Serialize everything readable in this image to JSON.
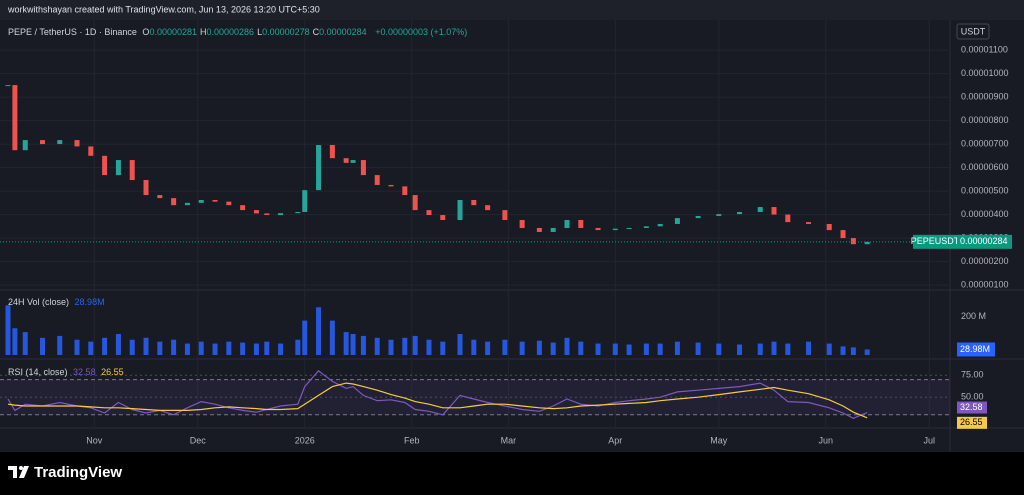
{
  "header": {
    "credit": "workwithshayan created with TradingView.com, Jun 13, 2026 13:20 UTC+5:30"
  },
  "chart_data": [
    {
      "type": "candlestick",
      "title": "PEPE / TetherUS · 1D · Binance",
      "ohlc_legend": [
        {
          "label": "O",
          "value": "0.00000281"
        },
        {
          "label": "H",
          "value": "0.00000286"
        },
        {
          "label": "L",
          "value": "0.00000278"
        },
        {
          "label": "C",
          "value": "0.00000284"
        }
      ],
      "change": "+0.00000003 (+1.07%)",
      "currency": "USDT",
      "symbol_tag": "PEPEUSDT",
      "last_price": {
        "value": 2.84e-06,
        "label": "0.00000284"
      },
      "up_color": "#26a69a",
      "down_color": "#ef5350",
      "x": [
        0,
        2,
        5,
        10,
        15,
        20,
        24,
        28,
        32,
        36,
        40,
        44,
        48,
        52,
        56,
        60,
        64,
        68,
        72,
        75,
        79,
        84,
        86,
        90,
        94,
        98,
        100,
        103,
        107,
        111,
        115,
        118,
        122,
        126,
        131,
        135,
        139,
        144,
        149,
        154,
        158,
        162,
        166,
        171,
        176,
        180,
        185,
        189,
        194,
        200,
        206,
        212,
        218,
        222,
        226,
        232,
        238,
        242,
        245,
        249
      ],
      "close": [
        9.51e-06,
        6.74e-06,
        7.17e-06,
        7e-06,
        7.17e-06,
        6.9e-06,
        6.5e-06,
        5.68e-06,
        6.32e-06,
        5.47e-06,
        4.83e-06,
        4.7e-06,
        4.4e-06,
        4.5e-06,
        4.62e-06,
        4.55e-06,
        4.4e-06,
        4.19e-06,
        4.05e-06,
        3.98e-06,
        4.06e-06,
        4.11e-06,
        5.04e-06,
        6.96e-06,
        6.4e-06,
        6.2e-06,
        6.32e-06,
        5.68e-06,
        5.26e-06,
        5.2e-06,
        4.83e-06,
        4.19e-06,
        3.98e-06,
        3.77e-06,
        4.62e-06,
        4.4e-06,
        4.19e-06,
        3.77e-06,
        3.43e-06,
        3.26e-06,
        3.43e-06,
        3.77e-06,
        3.43e-06,
        3.34e-06,
        3.4e-06,
        3.43e-06,
        3.5e-06,
        3.6e-06,
        3.85e-06,
        3.94e-06,
        4.02e-06,
        4.11e-06,
        4.32e-06,
        4e-06,
        3.68e-06,
        3.6e-06,
        3.34e-06,
        3e-06,
        2.74e-06,
        2.84e-06
      ],
      "xlim": [
        0,
        273
      ],
      "xticks": [
        {
          "value": 25,
          "label": "Nov"
        },
        {
          "value": 55,
          "label": "Dec"
        },
        {
          "value": 86,
          "label": "2026"
        },
        {
          "value": 117,
          "label": "Feb"
        },
        {
          "value": 145,
          "label": "Mar"
        },
        {
          "value": 176,
          "label": "Apr"
        },
        {
          "value": 206,
          "label": "May"
        },
        {
          "value": 237,
          "label": "Jun"
        },
        {
          "value": 267,
          "label": "Jul"
        }
      ],
      "ylim": [
        7.9e-07,
        1.228e-05
      ],
      "yticks": [
        {
          "value": 1e-06,
          "label": "0.00000100"
        },
        {
          "value": 2e-06,
          "label": "0.00000200"
        },
        {
          "value": 3e-06,
          "label": "0.00000300"
        },
        {
          "value": 4e-06,
          "label": "0.00000400"
        },
        {
          "value": 5e-06,
          "label": "0.00000500"
        },
        {
          "value": 6e-06,
          "label": "0.00000600"
        },
        {
          "value": 7e-06,
          "label": "0.00000700"
        },
        {
          "value": 8e-06,
          "label": "0.00000800"
        },
        {
          "value": 9e-06,
          "label": "0.00000900"
        },
        {
          "value": 1e-05,
          "label": "0.00001000"
        },
        {
          "value": 1.1e-05,
          "label": "0.00001100"
        }
      ],
      "grid": true
    },
    {
      "type": "bar",
      "title": "24H Vol (close)",
      "last_value_label": "28.98M",
      "series": [
        {
          "color": "#2962ff",
          "values": [
            260,
            140,
            120,
            90,
            100,
            80,
            70,
            90,
            110,
            80,
            90,
            70,
            80,
            60,
            70,
            60,
            70,
            65,
            60,
            70,
            60,
            80,
            180,
            250,
            180,
            120,
            110,
            100,
            90,
            80,
            90,
            100,
            80,
            70,
            110,
            80,
            70,
            80,
            70,
            75,
            65,
            90,
            70,
            60,
            60,
            55,
            60,
            60,
            70,
            65,
            60,
            55,
            60,
            70,
            60,
            70,
            60,
            45,
            40,
            28.98
          ]
        }
      ],
      "ylim": [
        0,
        330
      ],
      "yticks": [
        {
          "value": 200,
          "label": "200 M"
        }
      ]
    },
    {
      "type": "line",
      "title": "RSI (14, close)",
      "series": [
        {
          "color": "#7e57c2",
          "values": [
            48,
            35,
            42,
            40,
            44,
            40,
            38,
            32,
            44,
            36,
            32,
            35,
            30,
            38,
            45,
            42,
            38,
            35,
            33,
            36,
            40,
            42,
            62,
            80,
            68,
            60,
            62,
            52,
            46,
            47,
            44,
            36,
            34,
            30,
            52,
            48,
            44,
            40,
            36,
            34,
            40,
            48,
            42,
            40,
            44,
            46,
            48,
            50,
            56,
            58,
            60,
            62,
            66,
            58,
            45,
            44,
            38,
            32,
            26,
            32.58
          ]
        },
        {
          "color": "#f7c948",
          "values": [
            42,
            41,
            40,
            40,
            40,
            40,
            39,
            38,
            38,
            37,
            36,
            35,
            35,
            35,
            36,
            38,
            39,
            38,
            37,
            36,
            36,
            37,
            42,
            52,
            62,
            66,
            65,
            62,
            58,
            53,
            49,
            45,
            42,
            38,
            38,
            40,
            42,
            42,
            40,
            38,
            37,
            38,
            40,
            41,
            42,
            43,
            44,
            46,
            48,
            50,
            53,
            56,
            59,
            61,
            58,
            54,
            47,
            40,
            33,
            26.55
          ]
        }
      ],
      "bands": [
        30,
        70
      ],
      "ylim": [
        15,
        90
      ],
      "yticks": [
        {
          "value": 50,
          "label": "50.00"
        },
        {
          "value": 75,
          "label": "75.00"
        }
      ]
    }
  ],
  "footer": {
    "brand": "TradingView"
  }
}
